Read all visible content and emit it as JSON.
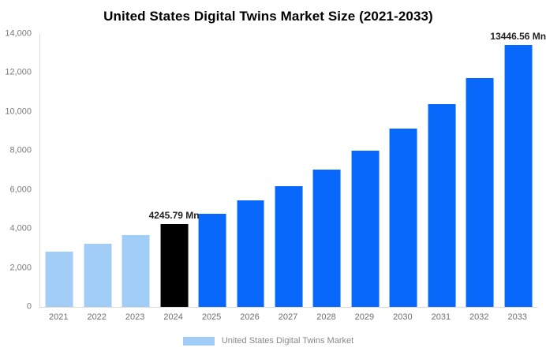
{
  "title": "United States Digital Twins Market Size (2021-2033)",
  "legend": {
    "items": [
      {
        "label": "United States Digital Twins Market",
        "color": "#A2CDF7"
      }
    ]
  },
  "colors": {
    "past_bar": "#A2CDF7",
    "highlight_bar": "#000000",
    "forecast_bar": "#0768FB",
    "axis_line": "#D9D9D9",
    "y_tick_text": "#7A7A7A",
    "x_tick_text": "#6E6E6E",
    "annotation_text": "#222222",
    "legend_text": "#888888",
    "title_text": "#000000",
    "background": "#FFFFFF"
  },
  "chart_data": {
    "type": "bar",
    "title": "United States Digital Twins Market Size (2021-2033)",
    "value_unit": "Mn",
    "categories": [
      "2021",
      "2022",
      "2023",
      "2024",
      "2025",
      "2026",
      "2027",
      "2028",
      "2029",
      "2030",
      "2031",
      "2032",
      "2033"
    ],
    "values": [
      2830,
      3240,
      3680,
      4245.79,
      4790,
      5460,
      6200,
      7040,
      8030,
      9140,
      10380,
      11750,
      13446.56
    ],
    "bar_colors": [
      "#A2CDF7",
      "#A2CDF7",
      "#A2CDF7",
      "#000000",
      "#0768FB",
      "#0768FB",
      "#0768FB",
      "#0768FB",
      "#0768FB",
      "#0768FB",
      "#0768FB",
      "#0768FB",
      "#0768FB"
    ],
    "xlabel": "",
    "ylabel": "",
    "ylim": [
      0,
      14000
    ],
    "grid": false,
    "legend_position": "bottom",
    "y_ticks": [
      {
        "value": 0,
        "label": "0"
      },
      {
        "value": 2000,
        "label": "2,000"
      },
      {
        "value": 4000,
        "label": "4,000"
      },
      {
        "value": 6000,
        "label": "6,000"
      },
      {
        "value": 8000,
        "label": "8,000"
      },
      {
        "value": 10000,
        "label": "10,000"
      },
      {
        "value": 12000,
        "label": "12,000"
      },
      {
        "value": 14000,
        "label": "14,000"
      }
    ],
    "annotations": [
      {
        "category": "2024",
        "index": 3,
        "text": "4245.79 Mn"
      },
      {
        "category": "2033",
        "index": 12,
        "text": "13446.56 Mn"
      }
    ]
  }
}
